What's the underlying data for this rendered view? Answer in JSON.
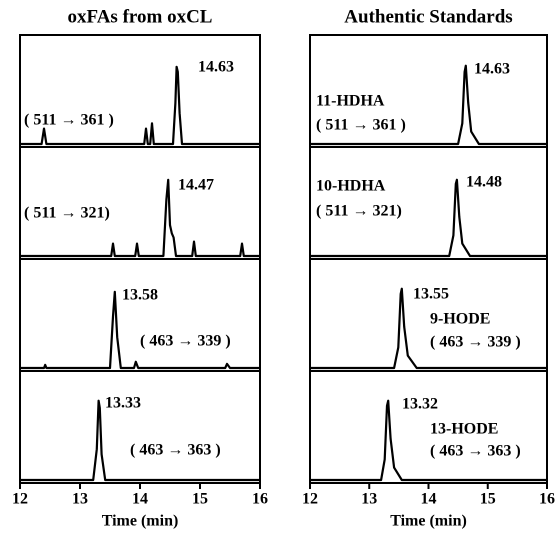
{
  "chart_data": [
    {
      "type": "line",
      "title": "oxFAs from oxCL",
      "xlabel": "Time (min)",
      "xlim": [
        12,
        16
      ],
      "xticks": [
        12,
        13,
        14,
        15,
        16
      ],
      "ylim": [
        0,
        100
      ],
      "series": [
        {
          "x": [
            12,
            12.36,
            12.4,
            12.44,
            14.07,
            14.1,
            14.13,
            14.17,
            14.2,
            14.23,
            14.55,
            14.59,
            14.61,
            14.63,
            14.66,
            14.7,
            16
          ],
          "values": [
            0,
            0,
            15,
            0,
            0,
            15,
            0,
            0,
            20,
            0,
            0,
            40,
            75,
            70,
            30,
            0,
            0
          ],
          "annotations": [
            "14.63",
            "( 511 → 361 )"
          ]
        },
        {
          "x": [
            12,
            13.52,
            13.55,
            13.58,
            13.92,
            13.95,
            13.98,
            14.39,
            14.44,
            14.47,
            14.5,
            14.53,
            14.56,
            14.6,
            14.87,
            14.9,
            14.93,
            15.67,
            15.7,
            15.73,
            16
          ],
          "values": [
            0,
            0,
            12,
            0,
            0,
            12,
            0,
            0,
            55,
            74,
            30,
            22,
            18,
            0,
            0,
            14,
            0,
            0,
            12,
            0,
            0
          ],
          "annotations": [
            "14.47",
            "( 511 → 321)"
          ]
        },
        {
          "x": [
            12,
            12.4,
            12.42,
            12.44,
            13.35,
            13.5,
            13.55,
            13.58,
            13.62,
            13.68,
            13.9,
            13.93,
            13.97,
            15.42,
            15.45,
            15.5,
            16
          ],
          "values": [
            0,
            0,
            3,
            0,
            0,
            0,
            50,
            74,
            30,
            0,
            0,
            6,
            0,
            0,
            4,
            0,
            0
          ],
          "annotations": [
            "13.58",
            "( 463 → 339 )"
          ]
        },
        {
          "x": [
            12,
            13.22,
            13.28,
            13.31,
            13.33,
            13.36,
            13.42,
            16
          ],
          "values": [
            0,
            0,
            30,
            77,
            70,
            25,
            0,
            0
          ],
          "annotations": [
            "13.33",
            "( 463 → 363 )"
          ]
        }
      ]
    },
    {
      "type": "line",
      "title": "Authentic Standards",
      "xlabel": "Time (min)",
      "xlim": [
        12,
        16
      ],
      "xticks": [
        12,
        13,
        14,
        15,
        16
      ],
      "ylim": [
        0,
        100
      ],
      "series": [
        {
          "x": [
            12,
            14.5,
            14.57,
            14.61,
            14.63,
            14.67,
            14.72,
            14.85,
            16
          ],
          "values": [
            0,
            0,
            20,
            70,
            76,
            40,
            12,
            0,
            0
          ],
          "annotations": [
            "14.63",
            "11-HDHA",
            "( 511 → 361 )"
          ]
        },
        {
          "x": [
            12,
            14.35,
            14.42,
            14.46,
            14.48,
            14.52,
            14.57,
            14.7,
            16
          ],
          "values": [
            0,
            0,
            20,
            70,
            74,
            38,
            12,
            0,
            0
          ],
          "annotations": [
            "14.48",
            "10-HDHA",
            "( 511 → 321)"
          ]
        },
        {
          "x": [
            12,
            13.42,
            13.49,
            13.53,
            13.55,
            13.59,
            13.65,
            13.8,
            16
          ],
          "values": [
            0,
            0,
            20,
            72,
            77,
            40,
            12,
            0,
            0
          ],
          "annotations": [
            "13.55",
            "9-HODE",
            "( 463 → 339 )"
          ]
        },
        {
          "x": [
            12,
            13.2,
            13.26,
            13.3,
            13.32,
            13.36,
            13.42,
            13.55,
            16
          ],
          "values": [
            0,
            0,
            20,
            72,
            77,
            40,
            12,
            0,
            0
          ],
          "annotations": [
            "13.32",
            "13-HODE",
            "( 463 → 363 )"
          ]
        }
      ]
    }
  ]
}
